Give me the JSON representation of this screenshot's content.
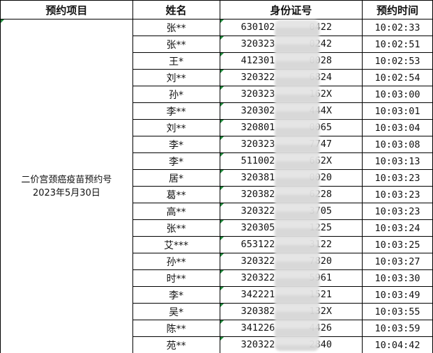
{
  "headers": {
    "project": "预约项目",
    "name": "姓名",
    "id": "身份证号",
    "time": "预约时间"
  },
  "project": {
    "line1": "二价宫颈癌疫苗预约号",
    "line2": "2023年5月30日"
  },
  "rows": [
    {
      "name": "张**",
      "id_prefix": "630102",
      "id_suffix": "0422",
      "time": "10:02:33"
    },
    {
      "name": "张**",
      "id_prefix": "320323",
      "id_suffix": "0242",
      "time": "10:02:51"
    },
    {
      "name": "王*",
      "id_prefix": "412301",
      "id_suffix": "0028",
      "time": "10:02:53"
    },
    {
      "name": "刘**",
      "id_prefix": "320322",
      "id_suffix": "6824",
      "time": "10:02:54"
    },
    {
      "name": "孙*",
      "id_prefix": "320323",
      "id_suffix": "162X",
      "time": "10:03:00"
    },
    {
      "name": "李**",
      "id_prefix": "320302",
      "id_suffix": "444X",
      "time": "10:03:01"
    },
    {
      "name": "刘**",
      "id_prefix": "320801",
      "id_suffix": "0065",
      "time": "10:03:04"
    },
    {
      "name": "李*",
      "id_prefix": "320323",
      "id_suffix": "7747",
      "time": "10:03:08"
    },
    {
      "name": "李*",
      "id_prefix": "511002",
      "id_suffix": "662X",
      "time": "10:03:13"
    },
    {
      "name": "居*",
      "id_prefix": "320381",
      "id_suffix": "0020",
      "time": "10:03:23"
    },
    {
      "name": "葛**",
      "id_prefix": "320382",
      "id_suffix": "6228",
      "time": "10:03:23"
    },
    {
      "name": "高**",
      "id_prefix": "320322",
      "id_suffix": "3705",
      "time": "10:03:23"
    },
    {
      "name": "张**",
      "id_prefix": "320305",
      "id_suffix": "1225",
      "time": "10:03:24"
    },
    {
      "name": "艾***",
      "id_prefix": "653122",
      "id_suffix": "3122",
      "time": "10:03:25"
    },
    {
      "name": "孙**",
      "id_prefix": "320322",
      "id_suffix": "7820",
      "time": "10:03:27"
    },
    {
      "name": "时**",
      "id_prefix": "320322",
      "id_suffix": "5961",
      "time": "10:03:30"
    },
    {
      "name": "李*",
      "id_prefix": "342221",
      "id_suffix": "1521",
      "time": "10:03:49"
    },
    {
      "name": "吴*",
      "id_prefix": "320382",
      "id_suffix": "132X",
      "time": "10:03:55"
    },
    {
      "name": "陈**",
      "id_prefix": "341226",
      "id_suffix": "4426",
      "time": "10:03:59"
    },
    {
      "name": "苑**",
      "id_prefix": "320322",
      "id_suffix": "2840",
      "time": "10:04:42"
    }
  ]
}
